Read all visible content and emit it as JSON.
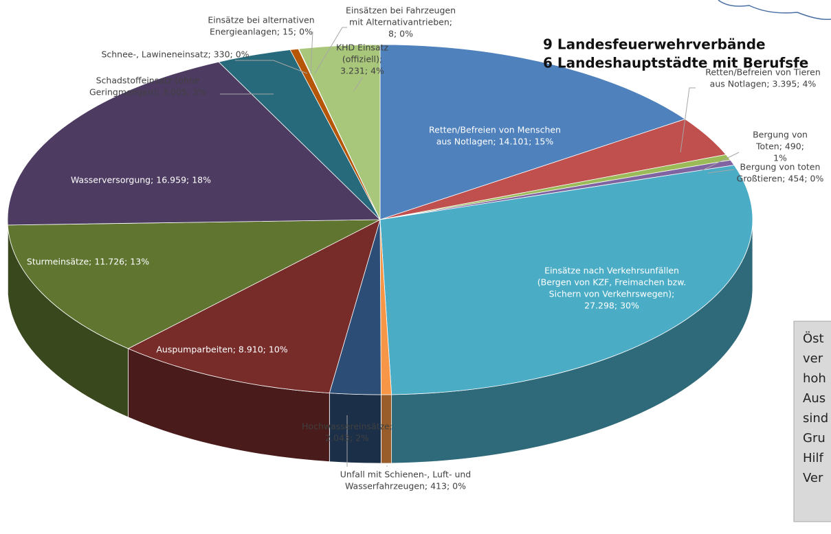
{
  "chart_data": {
    "type": "pie3d",
    "headings": [
      "9 Landesfeuerwehrverbände",
      "6 Landeshauptstädte mit Berufsfe"
    ],
    "note_lines": [
      "Öst",
      "ver",
      "hoh",
      "Aus",
      "sind",
      "Gru",
      "Hilf",
      "Ver"
    ],
    "categories": [
      [
        "Retten/Befreien von Menschen",
        "aus Notlagen; 14.101; 15%"
      ],
      [
        "Retten/Befreien von Tieren",
        "aus Notlagen; 3.395; 4%"
      ],
      [
        "Bergung von",
        "Toten; 490;",
        "1%"
      ],
      [
        "Bergung von toten",
        "Großtieren; 454; 0%"
      ],
      [
        "Einsätze nach Verkehrsunfällen",
        "(Bergen von KZF, Freimachen bzw.",
        "Sichern von Verkehrswegen);",
        "27.298; 30%"
      ],
      [
        "Unfall mit Schienen-, Luft- und",
        "Wasserfahrzeugen; 413; 0%"
      ],
      [
        "Hochwassereinsätze;",
        "2.043; 2%"
      ],
      [
        "Auspumparbeiten; 8.910; 10%"
      ],
      [
        "Sturmeinsätze; 11.726; 13%"
      ],
      [
        "Wasserversorgung; 16.959; 18%"
      ],
      [
        "Schadstoffeinsatz (ohne",
        "Geringmengen); 3.005; 3%"
      ],
      [
        "Schnee-, Lawineneinsatz; 330; 0%"
      ],
      [
        "Einsätze bei alternativen",
        "Energieanlagen; 15; 0%"
      ],
      [
        "Einsätzen bei Fahrzeugen",
        "mit Alternativantrieben;",
        "8; 0%"
      ],
      [
        "KHD Einsatz",
        "(offiziell);",
        "3.231; 4%"
      ]
    ],
    "values": [
      14101,
      3395,
      490,
      454,
      27298,
      413,
      2043,
      8910,
      11726,
      16959,
      3005,
      330,
      15,
      8,
      3231
    ],
    "colors": [
      "#4f81bd",
      "#c0504d",
      "#9bbb59",
      "#8064a2",
      "#4bacc6",
      "#f79646",
      "#2c4d75",
      "#772c2a",
      "#5f7530",
      "#4d3b62",
      "#276a7c",
      "#b65708",
      "#d99694",
      "#b3a2c7",
      "#a8c77a"
    ]
  }
}
